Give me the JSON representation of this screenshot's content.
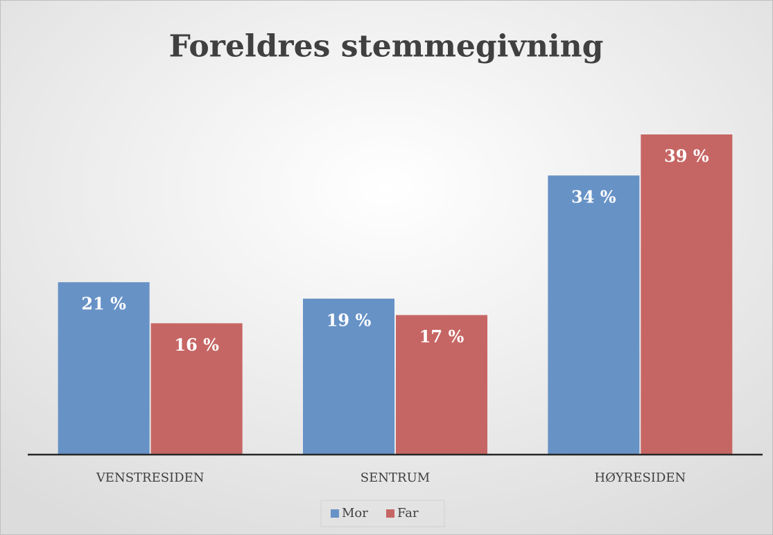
{
  "chart_data": {
    "type": "bar",
    "title": "Foreldres stemmegivning",
    "categories": [
      "VENSTRESIDEN",
      "SENTRUM",
      "HØYRESIDEN"
    ],
    "series": [
      {
        "name": "Mor",
        "color": "#6792c6",
        "values": [
          21,
          19,
          34
        ],
        "value_labels": [
          "21 %",
          "19 %",
          "34 %"
        ]
      },
      {
        "name": "Far",
        "color": "#c66664",
        "values": [
          16,
          17,
          39
        ],
        "value_labels": [
          "16 %",
          "17 %",
          "39 %"
        ]
      }
    ],
    "legend": "bottom"
  }
}
